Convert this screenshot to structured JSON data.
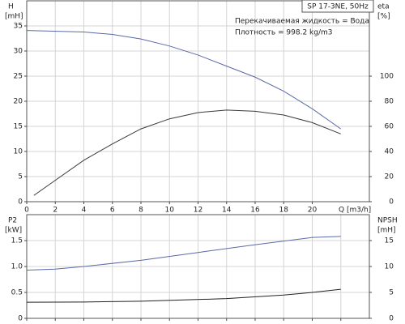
{
  "chart_data": [
    {
      "type": "line",
      "title": "SP 17-3NE, 50Hz",
      "annotations": [
        "Перекачиваемая жидкость = Вода",
        "Плотность = 998.2 kg/m3"
      ],
      "ylabel": "H",
      "yunit": "[mH]",
      "y2label": "eta",
      "y2unit": "[%]",
      "xlabel": "Q [m3/h]",
      "xlim": [
        0,
        24
      ],
      "xticks": [
        0,
        2,
        4,
        6,
        8,
        10,
        12,
        14,
        16,
        18,
        20
      ],
      "ylim": [
        0,
        40
      ],
      "yticks": [
        0,
        5,
        10,
        15,
        20,
        25,
        30,
        35
      ],
      "y2lim": [
        0,
        160
      ],
      "y2ticks": [
        0,
        20,
        40,
        60,
        80,
        100
      ],
      "grid": true,
      "series": [
        {
          "name": "H",
          "color": "#5a6aa8",
          "x": [
            0,
            4,
            6,
            8,
            10,
            12,
            14,
            16,
            18,
            20,
            22
          ],
          "values": [
            34.1,
            33.8,
            33.3,
            32.4,
            31,
            29.2,
            27,
            24.8,
            22,
            18.5,
            14.5
          ]
        },
        {
          "name": "eta",
          "color": "#3a3a3a",
          "axis": "y2",
          "x": [
            0.5,
            2,
            4,
            6,
            8,
            10,
            12,
            14,
            16,
            18,
            20,
            22
          ],
          "values": [
            5,
            17,
            33,
            46,
            58,
            66,
            71,
            73,
            72,
            69,
            63,
            54
          ]
        }
      ]
    },
    {
      "type": "line",
      "ylabel": "P2",
      "yunit": "[kW]",
      "y2label": "NPSH",
      "y2unit": "[mH]",
      "xlim": [
        0,
        24
      ],
      "xticks": [
        0,
        2,
        4,
        6,
        8,
        10,
        12,
        14,
        16,
        18,
        20,
        22
      ],
      "ylim": [
        0,
        2
      ],
      "yticks": [
        0,
        0.5,
        {
          "value": 1,
          "label": "1.0"
        },
        1.5
      ],
      "y2lim": [
        0,
        20
      ],
      "y2ticks": [
        0,
        5,
        10,
        15
      ],
      "grid": true,
      "series": [
        {
          "name": "P2",
          "color": "#5a6aa8",
          "x": [
            0,
            2,
            4,
            8,
            12,
            16,
            20,
            22
          ],
          "values": [
            0.93,
            0.95,
            1.0,
            1.12,
            1.27,
            1.42,
            1.56,
            1.58
          ]
        },
        {
          "name": "NPSH",
          "color": "#222222",
          "axis": "y2",
          "x": [
            0,
            4,
            8,
            14,
            18,
            20,
            22
          ],
          "values": [
            3.1,
            3.15,
            3.3,
            3.8,
            4.5,
            5.0,
            5.6
          ]
        }
      ]
    }
  ]
}
